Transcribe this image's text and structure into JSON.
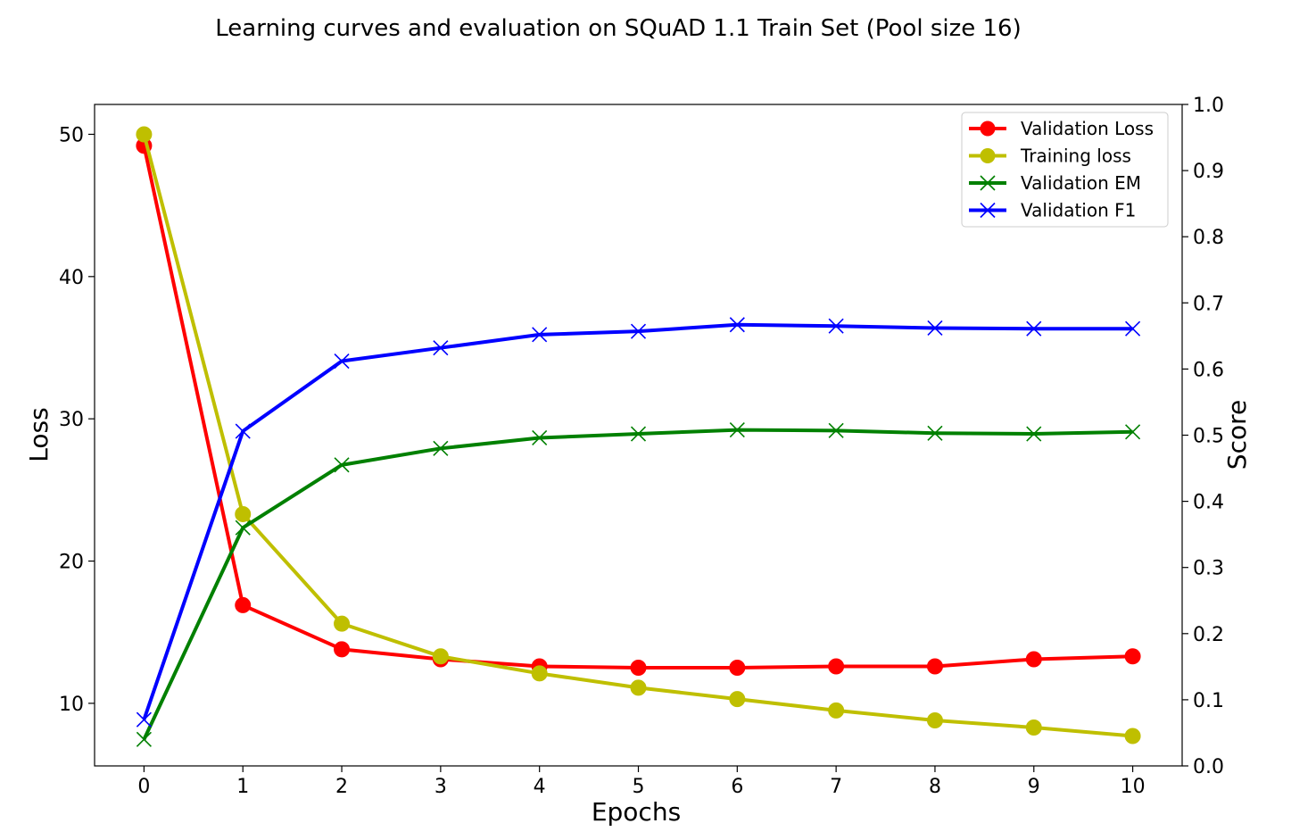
{
  "chart_data": {
    "type": "line",
    "title": "Learning curves and evaluation on SQuAD 1.1 Train Set (Pool size 16)",
    "xlabel": "Epochs",
    "ylabel_left": "Loss",
    "ylabel_right": "Score",
    "x": [
      0,
      1,
      2,
      3,
      4,
      5,
      6,
      7,
      8,
      9,
      10
    ],
    "x_ticks": [
      "0",
      "1",
      "2",
      "3",
      "4",
      "5",
      "6",
      "7",
      "8",
      "9",
      "10"
    ],
    "ylim_left": [
      5.6,
      52.1
    ],
    "yticks_left": [
      "10",
      "20",
      "30",
      "40",
      "50"
    ],
    "ylim_right": [
      0.0,
      1.0
    ],
    "yticks_right": [
      "0.0",
      "0.1",
      "0.2",
      "0.3",
      "0.4",
      "0.5",
      "0.6",
      "0.7",
      "0.8",
      "0.9",
      "1.0"
    ],
    "grid": false,
    "legend_position": "top-right",
    "series": [
      {
        "name": "Validation Loss",
        "axis": "left",
        "marker": "circle",
        "color": "#ff0000",
        "values": [
          49.2,
          16.9,
          13.8,
          13.1,
          12.6,
          12.5,
          12.5,
          12.6,
          12.6,
          13.1,
          13.3
        ]
      },
      {
        "name": "Training loss",
        "axis": "left",
        "marker": "circle",
        "color": "#bfbf00",
        "values": [
          50.0,
          23.3,
          15.6,
          13.3,
          12.1,
          11.1,
          10.3,
          9.5,
          8.8,
          8.3,
          7.7
        ]
      },
      {
        "name": "Validation EM",
        "axis": "right",
        "marker": "x",
        "color": "#008000",
        "values": [
          0.04,
          0.36,
          0.455,
          0.48,
          0.496,
          0.502,
          0.508,
          0.507,
          0.503,
          0.502,
          0.505
        ]
      },
      {
        "name": "Validation F1",
        "axis": "right",
        "marker": "x",
        "color": "#0000ff",
        "values": [
          0.07,
          0.506,
          0.612,
          0.632,
          0.652,
          0.657,
          0.667,
          0.665,
          0.662,
          0.661,
          0.661
        ]
      }
    ]
  }
}
